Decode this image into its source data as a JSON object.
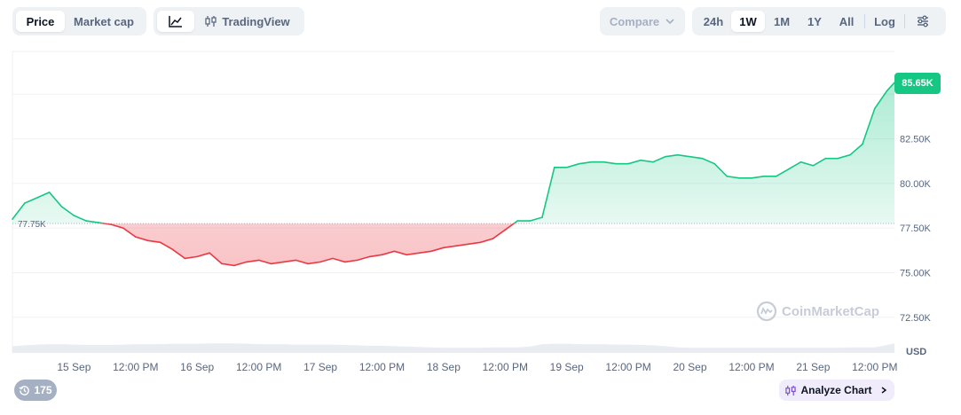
{
  "toolbar": {
    "metric_tabs": [
      {
        "label": "Price",
        "active": true
      },
      {
        "label": "Market cap",
        "active": false
      }
    ],
    "view_tabs": {
      "line_icon": "line-chart-icon",
      "tradingview_label": "TradingView",
      "tradingview_icon": "candles-icon"
    },
    "compare": {
      "label": "Compare",
      "icon": "chevron-down-icon"
    },
    "ranges": [
      {
        "label": "24h",
        "active": false
      },
      {
        "label": "1W",
        "active": true
      },
      {
        "label": "1M",
        "active": false
      },
      {
        "label": "1Y",
        "active": false
      },
      {
        "label": "All",
        "active": false
      }
    ],
    "log_label": "Log",
    "settings_icon": "sliders-icon"
  },
  "footer": {
    "history_count": "175",
    "history_icon": "history-icon",
    "analyze_label": "Analyze Chart",
    "analyze_icon": "candles-icon",
    "analyze_chevron": "chevron-right-icon"
  },
  "watermark": {
    "text": "CoinMarketCap",
    "icon": "coinmarketcap-logo-icon"
  },
  "chart_data": {
    "type": "area",
    "title": "",
    "xlabel": "",
    "ylabel": "USD",
    "baseline": 77.75,
    "baseline_label": "77.75K",
    "current_label": "85.65K",
    "ylim": [
      70.5,
      87.4
    ],
    "y_ticks": [
      72.5,
      75,
      77.5,
      80,
      82.5
    ],
    "y_tick_labels": [
      "72.50K",
      "75.00K",
      "77.50K",
      "80.00K",
      "82.50K"
    ],
    "x_tick_labels": [
      "15 Sep",
      "12:00 PM",
      "16 Sep",
      "12:00 PM",
      "17 Sep",
      "12:00 PM",
      "18 Sep",
      "12:00 PM",
      "19 Sep",
      "12:00 PM",
      "20 Sep",
      "12:00 PM",
      "21 Sep",
      "12:00 PM"
    ],
    "x_tick_positions": [
      0.5,
      1,
      1.5,
      2,
      2.5,
      3,
      3.5,
      4,
      4.5,
      5,
      5.5,
      6,
      6.5,
      7
    ],
    "x_range": [
      0.0,
      7.16
    ],
    "colors": {
      "up": "#16c784",
      "down": "#ea3943"
    },
    "x": [
      0.0,
      0.1,
      0.2,
      0.3,
      0.4,
      0.5,
      0.6,
      0.7,
      0.8,
      0.9,
      1.0,
      1.1,
      1.2,
      1.3,
      1.4,
      1.5,
      1.6,
      1.7,
      1.8,
      1.9,
      2.0,
      2.1,
      2.2,
      2.3,
      2.4,
      2.5,
      2.6,
      2.7,
      2.8,
      2.9,
      3.0,
      3.1,
      3.2,
      3.3,
      3.4,
      3.5,
      3.6,
      3.7,
      3.8,
      3.9,
      4.0,
      4.1,
      4.2,
      4.3,
      4.4,
      4.5,
      4.6,
      4.7,
      4.8,
      4.9,
      5.0,
      5.1,
      5.2,
      5.3,
      5.4,
      5.5,
      5.6,
      5.7,
      5.8,
      5.9,
      6.0,
      6.1,
      6.2,
      6.3,
      6.4,
      6.5,
      6.6,
      6.7,
      6.8,
      6.9,
      7.0,
      7.1,
      7.16
    ],
    "values": [
      78.0,
      78.9,
      79.2,
      79.5,
      78.7,
      78.2,
      77.9,
      77.8,
      77.7,
      77.5,
      77.0,
      76.8,
      76.7,
      76.3,
      75.8,
      75.9,
      76.1,
      75.5,
      75.4,
      75.6,
      75.7,
      75.5,
      75.6,
      75.7,
      75.5,
      75.6,
      75.8,
      75.6,
      75.7,
      75.9,
      76.0,
      76.2,
      76.0,
      76.1,
      76.2,
      76.4,
      76.5,
      76.6,
      76.7,
      76.9,
      77.4,
      77.9,
      77.9,
      78.1,
      80.9,
      80.9,
      81.1,
      81.2,
      81.2,
      81.1,
      81.1,
      81.3,
      81.2,
      81.5,
      81.6,
      81.5,
      81.4,
      81.1,
      80.4,
      80.3,
      80.3,
      80.4,
      80.4,
      80.8,
      81.2,
      81.0,
      81.4,
      81.4,
      81.6,
      82.2,
      84.2,
      85.2,
      85.65
    ],
    "volume": [
      0.17,
      0.19,
      0.21,
      0.22,
      0.22,
      0.21,
      0.2,
      0.2,
      0.2,
      0.21,
      0.22,
      0.22,
      0.22,
      0.23,
      0.23,
      0.23,
      0.24,
      0.24,
      0.24,
      0.23,
      0.22,
      0.22,
      0.22,
      0.21,
      0.21,
      0.21,
      0.21,
      0.2,
      0.19,
      0.18,
      0.18,
      0.17,
      0.16,
      0.15,
      0.14,
      0.13,
      0.13,
      0.13,
      0.13,
      0.14,
      0.14,
      0.14,
      0.16,
      0.22,
      0.23,
      0.23,
      0.22,
      0.22,
      0.22,
      0.21,
      0.21,
      0.2,
      0.19,
      0.17,
      0.14,
      0.13,
      0.13,
      0.13,
      0.13,
      0.13,
      0.13,
      0.13,
      0.13,
      0.13,
      0.13,
      0.13,
      0.13,
      0.13,
      0.14,
      0.14,
      0.14,
      0.2,
      0.24
    ]
  }
}
